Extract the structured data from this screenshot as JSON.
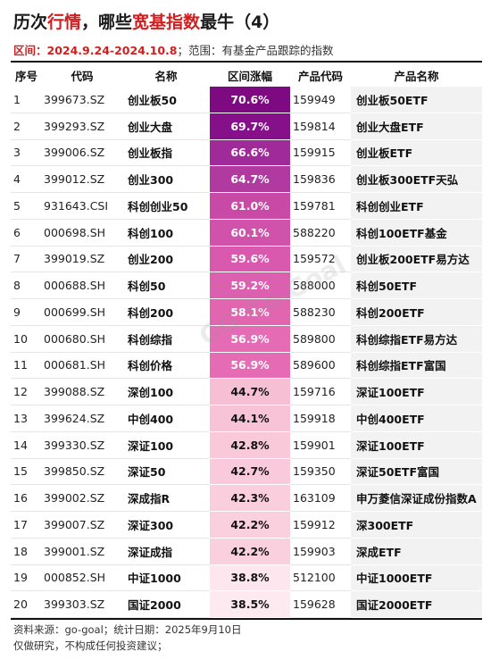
{
  "title": {
    "part1": "历次",
    "part2": "行情",
    "part3": "，哪些",
    "part4": "宽基指数",
    "part5": "最牛（4）"
  },
  "subtitle": {
    "label": "区间：",
    "range": "2024.9.24-2024.10.8",
    "rest": "；范围：有基金产品跟踪的指数"
  },
  "headers": [
    "序号",
    "代码",
    "名称",
    "区间涨幅",
    "产品代码",
    "产品名称"
  ],
  "rows": [
    {
      "no": "1",
      "code": "399673.SZ",
      "name": "创业板50",
      "chg": "70.6%",
      "pcode": "159949",
      "pname": "创业板50ETF",
      "color": "#7e0a82"
    },
    {
      "no": "2",
      "code": "399293.SZ",
      "name": "创业大盘",
      "chg": "69.7%",
      "pcode": "159814",
      "pname": "创业大盘ETF",
      "color": "#86108a"
    },
    {
      "no": "3",
      "code": "399006.SZ",
      "name": "创业板指",
      "chg": "66.6%",
      "pcode": "159915",
      "pname": "创业板ETF",
      "color": "#a02a9a"
    },
    {
      "no": "4",
      "code": "399012.SZ",
      "name": "创业300",
      "chg": "64.7%",
      "pcode": "159836",
      "pname": "创业板300ETF天弘",
      "color": "#b03aa0"
    },
    {
      "no": "5",
      "code": "931643.CSI",
      "name": "科创创业50",
      "chg": "61.0%",
      "pcode": "159781",
      "pname": "科创创业ETF",
      "color": "#c84aa6"
    },
    {
      "no": "6",
      "code": "000698.SH",
      "name": "科创100",
      "chg": "60.1%",
      "pcode": "588220",
      "pname": "科创100ETF基金",
      "color": "#d052ab"
    },
    {
      "no": "7",
      "code": "399019.SZ",
      "name": "创业200",
      "chg": "59.6%",
      "pcode": "159572",
      "pname": "创业板200ETF易方达",
      "color": "#d859ae"
    },
    {
      "no": "8",
      "code": "000688.SH",
      "name": "科创50",
      "chg": "59.2%",
      "pcode": "588000",
      "pname": "科创50ETF",
      "color": "#dc60b0"
    },
    {
      "no": "9",
      "code": "000699.SH",
      "name": "科创200",
      "chg": "58.1%",
      "pcode": "588230",
      "pname": "科创200ETF",
      "color": "#e265b0"
    },
    {
      "no": "10",
      "code": "000680.SH",
      "name": "科创综指",
      "chg": "56.9%",
      "pcode": "589800",
      "pname": "科创综指ETF易方达",
      "color": "#e56cb4"
    },
    {
      "no": "11",
      "code": "000681.SH",
      "name": "科创价格",
      "chg": "56.9%",
      "pcode": "589600",
      "pname": "科创综指ETF富国",
      "color": "#e56cb4"
    },
    {
      "no": "12",
      "code": "399088.SZ",
      "name": "深创100",
      "chg": "44.7%",
      "pcode": "159716",
      "pname": "深证100ETF",
      "color": "#f7bfd4"
    },
    {
      "no": "13",
      "code": "399624.SZ",
      "name": "中创400",
      "chg": "44.1%",
      "pcode": "159918",
      "pname": "中创400ETF",
      "color": "#f8c3d6"
    },
    {
      "no": "14",
      "code": "399330.SZ",
      "name": "深证100",
      "chg": "42.8%",
      "pcode": "159901",
      "pname": "深证100ETF",
      "color": "#f9c9da"
    },
    {
      "no": "15",
      "code": "399850.SZ",
      "name": "深证50",
      "chg": "42.7%",
      "pcode": "159350",
      "pname": "深证50ETF富国",
      "color": "#f9cadb"
    },
    {
      "no": "16",
      "code": "399002.SZ",
      "name": "深成指R",
      "chg": "42.3%",
      "pcode": "163109",
      "pname": "申万菱信深证成份指数A",
      "color": "#facedd"
    },
    {
      "no": "17",
      "code": "399007.SZ",
      "name": "深证300",
      "chg": "42.2%",
      "pcode": "159912",
      "pname": "深300ETF",
      "color": "#facfde"
    },
    {
      "no": "18",
      "code": "399001.SZ",
      "name": "深证成指",
      "chg": "42.2%",
      "pcode": "159903",
      "pname": "深成ETF",
      "color": "#facfde"
    },
    {
      "no": "19",
      "code": "000852.SH",
      "name": "中证1000",
      "chg": "38.8%",
      "pcode": "512100",
      "pname": "中证1000ETF",
      "color": "#fde6ee"
    },
    {
      "no": "20",
      "code": "399303.SZ",
      "name": "国证2000",
      "chg": "38.5%",
      "pcode": "159628",
      "pname": "国证2000ETF",
      "color": "#fde9f0"
    }
  ],
  "footer": {
    "line1": "资料来源：go-goal；统计日期：2025年9月10日",
    "line2": "仅做研究，不构成任何投资建议；"
  },
  "watermark": "GG Go-Goal"
}
